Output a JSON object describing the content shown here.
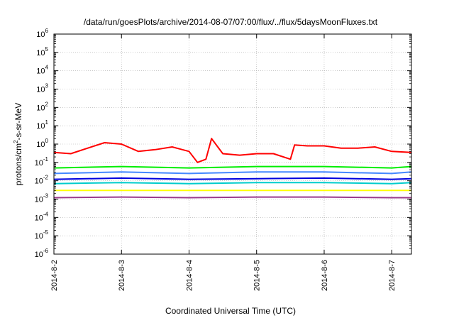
{
  "chart_data": {
    "type": "line",
    "title": "/data/run/goesPlots/archive/2014-08-07/07:00/flux/../flux/5daysMoonFluxes.txt",
    "xlabel": "Coordinated Universal Time (UTC)",
    "ylabel": {
      "base": "protons/cm",
      "sup": "2",
      "rest": "-s-sr-MeV"
    },
    "y_scale": "log",
    "ylim": [
      1e-06,
      1000000.0
    ],
    "y_ticks": [
      {
        "value": 1e-06,
        "exp": "-6"
      },
      {
        "value": 1e-05,
        "exp": "-5"
      },
      {
        "value": 0.0001,
        "exp": "-4"
      },
      {
        "value": 0.001,
        "exp": "-3"
      },
      {
        "value": 0.01,
        "exp": "-2"
      },
      {
        "value": 0.1,
        "exp": "-1"
      },
      {
        "value": 1,
        "exp": "0"
      },
      {
        "value": 10,
        "exp": "1"
      },
      {
        "value": 100,
        "exp": "2"
      },
      {
        "value": 1000,
        "exp": "3"
      },
      {
        "value": 10000,
        "exp": "4"
      },
      {
        "value": 100000,
        "exp": "5"
      },
      {
        "value": 1000000,
        "exp": "6"
      }
    ],
    "x_ticks": [
      "2014-8-2",
      "2014-8-3",
      "2014-8-4",
      "2014-8-5",
      "2014-8-6",
      "2014-8-7"
    ],
    "xlim": [
      "2014-08-02 00:00",
      "2014-08-07 07:00"
    ],
    "grid": true,
    "series": [
      {
        "color": "#ff0000",
        "x": [
          "2014-08-02 00:00",
          "2014-08-02 06:00",
          "2014-08-02 12:00",
          "2014-08-02 18:00",
          "2014-08-03 00:00",
          "2014-08-03 06:00",
          "2014-08-03 12:00",
          "2014-08-03 18:00",
          "2014-08-04 00:00",
          "2014-08-04 03:00",
          "2014-08-04 06:00",
          "2014-08-04 08:00",
          "2014-08-04 12:00",
          "2014-08-04 18:00",
          "2014-08-05 00:00",
          "2014-08-05 06:00",
          "2014-08-05 12:00",
          "2014-08-05 13:30",
          "2014-08-05 18:00",
          "2014-08-06 00:00",
          "2014-08-06 06:00",
          "2014-08-06 12:00",
          "2014-08-06 18:00",
          "2014-08-07 00:00",
          "2014-08-07 07:00"
        ],
        "values": [
          0.35,
          0.3,
          0.6,
          1.2,
          1.0,
          0.4,
          0.5,
          0.7,
          0.4,
          0.1,
          0.15,
          2.0,
          0.3,
          0.25,
          0.3,
          0.3,
          0.15,
          0.9,
          0.8,
          0.8,
          0.6,
          0.6,
          0.7,
          0.4,
          0.35
        ]
      },
      {
        "color": "#00ee00",
        "x": [
          "2014-08-02 00:00",
          "2014-08-03 00:00",
          "2014-08-04 00:00",
          "2014-08-05 00:00",
          "2014-08-06 00:00",
          "2014-08-07 00:00",
          "2014-08-07 07:00"
        ],
        "values": [
          0.05,
          0.06,
          0.05,
          0.06,
          0.06,
          0.05,
          0.06
        ]
      },
      {
        "color": "#4488ff",
        "x": [
          "2014-08-02 00:00",
          "2014-08-03 00:00",
          "2014-08-04 00:00",
          "2014-08-05 00:00",
          "2014-08-06 00:00",
          "2014-08-07 00:00",
          "2014-08-07 07:00"
        ],
        "values": [
          0.025,
          0.03,
          0.025,
          0.03,
          0.03,
          0.025,
          0.03
        ]
      },
      {
        "color": "#0000dd",
        "x": [
          "2014-08-02 00:00",
          "2014-08-03 00:00",
          "2014-08-04 00:00",
          "2014-08-05 00:00",
          "2014-08-06 00:00",
          "2014-08-07 00:00",
          "2014-08-07 07:00"
        ],
        "values": [
          0.012,
          0.014,
          0.012,
          0.013,
          0.014,
          0.012,
          0.013
        ]
      },
      {
        "color": "#00cccc",
        "x": [
          "2014-08-02 00:00",
          "2014-08-03 00:00",
          "2014-08-04 00:00",
          "2014-08-05 00:00",
          "2014-08-06 00:00",
          "2014-08-07 00:00",
          "2014-08-07 07:00"
        ],
        "values": [
          0.007,
          0.008,
          0.007,
          0.008,
          0.008,
          0.007,
          0.008
        ]
      },
      {
        "color": "#ffff00",
        "x": [
          "2014-08-02 00:00",
          "2014-08-03 00:00",
          "2014-08-04 00:00",
          "2014-08-05 00:00",
          "2014-08-06 00:00",
          "2014-08-07 00:00",
          "2014-08-07 07:00"
        ],
        "values": [
          0.003,
          0.003,
          0.003,
          0.003,
          0.003,
          0.003,
          0.003
        ]
      },
      {
        "color": "#9b3b8b",
        "x": [
          "2014-08-02 00:00",
          "2014-08-03 00:00",
          "2014-08-04 00:00",
          "2014-08-05 00:00",
          "2014-08-06 00:00",
          "2014-08-07 00:00",
          "2014-08-07 07:00"
        ],
        "values": [
          0.0012,
          0.0013,
          0.0012,
          0.0013,
          0.0013,
          0.0012,
          0.0012
        ]
      }
    ]
  }
}
